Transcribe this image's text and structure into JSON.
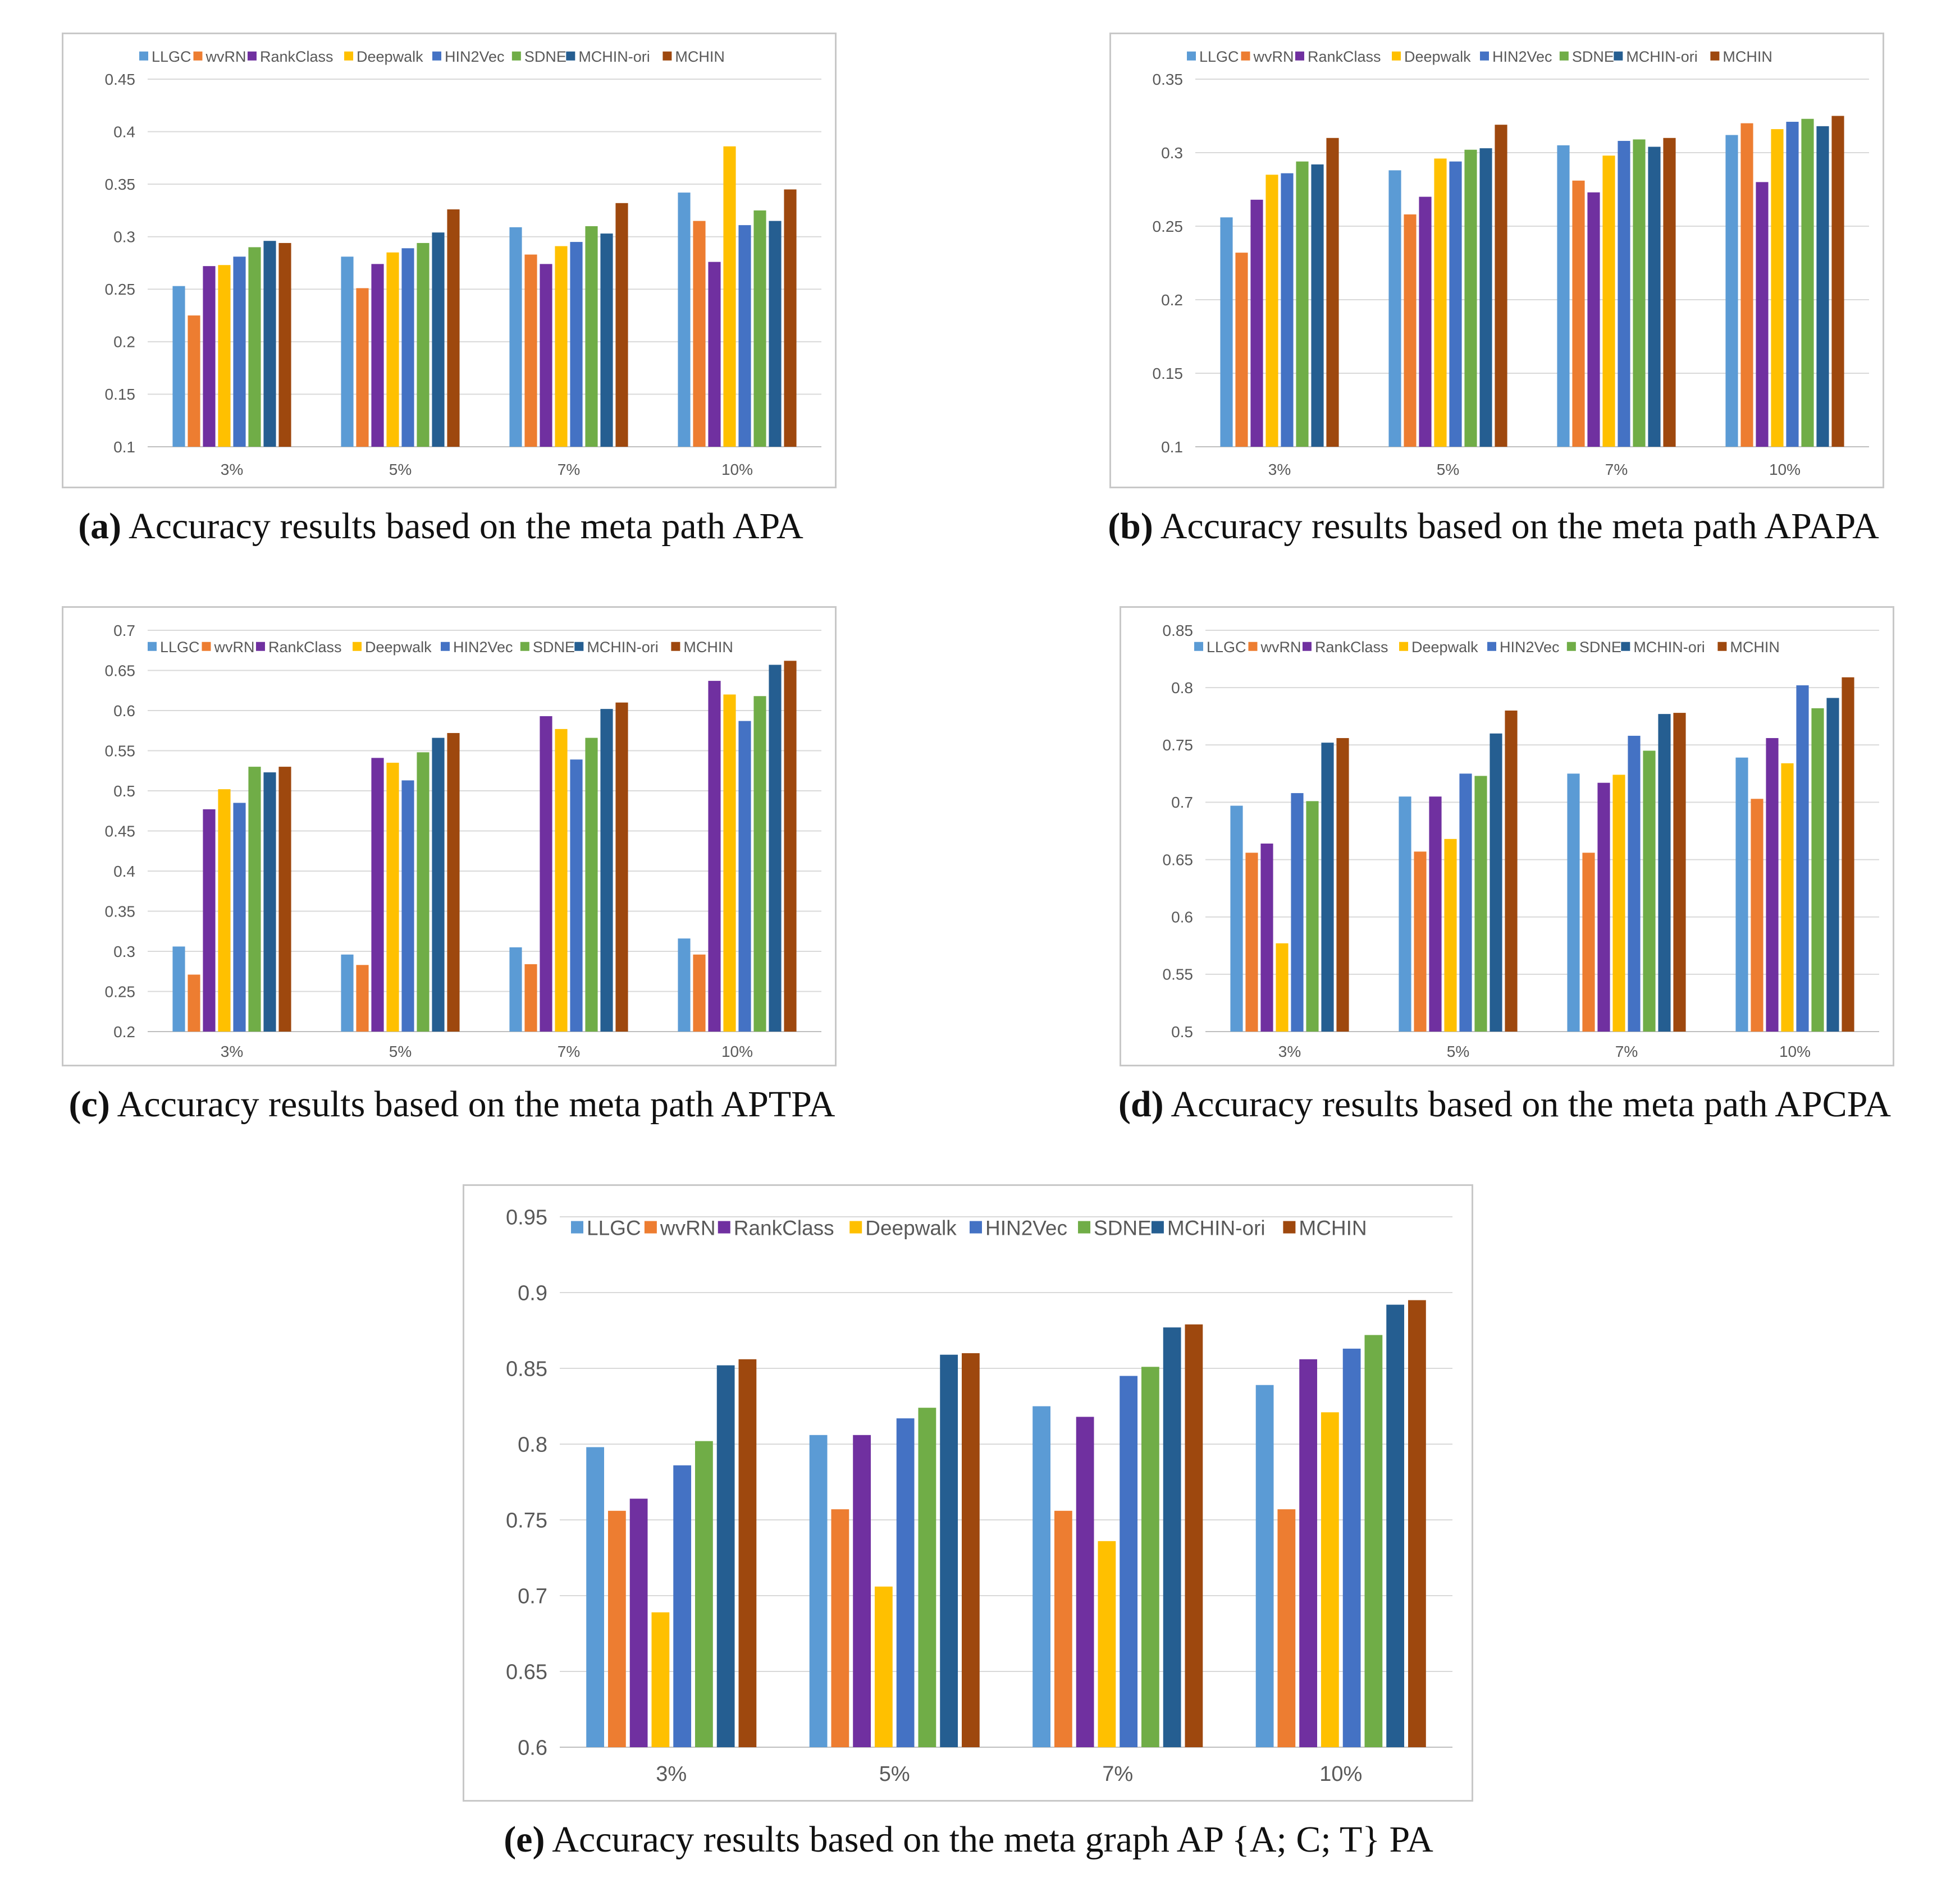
{
  "colors": [
    "#5B9BD5",
    "#ED7D31",
    "#7030A0",
    "#FFC000",
    "#4472C4",
    "#70AD47",
    "#255E91",
    "#9E480E"
  ],
  "chart_data": [
    {
      "id": "a",
      "type": "bar",
      "caption_label": "(a)",
      "caption_text": " Accuracy results based on the meta path APA",
      "categories": [
        "3%",
        "5%",
        "7%",
        "10%"
      ],
      "ylim": [
        0.1,
        0.45
      ],
      "yticks": [
        "0.1",
        "0.15",
        "0.2",
        "0.25",
        "0.3",
        "0.35",
        "0.4",
        "0.45"
      ],
      "series": [
        {
          "name": "LLGC",
          "values": [
            0.253,
            0.281,
            0.309,
            0.342
          ]
        },
        {
          "name": "wvRN",
          "values": [
            0.225,
            0.251,
            0.283,
            0.315
          ]
        },
        {
          "name": "RankClass",
          "values": [
            0.272,
            0.274,
            0.274,
            0.276
          ]
        },
        {
          "name": "Deepwalk",
          "values": [
            0.273,
            0.285,
            0.291,
            0.386
          ]
        },
        {
          "name": "HIN2Vec",
          "values": [
            0.281,
            0.289,
            0.295,
            0.311
          ]
        },
        {
          "name": "SDNE",
          "values": [
            0.29,
            0.294,
            0.31,
            0.325
          ]
        },
        {
          "name": "MCHIN-ori",
          "values": [
            0.296,
            0.304,
            0.303,
            0.315
          ]
        },
        {
          "name": "MCHIN",
          "values": [
            0.294,
            0.326,
            0.332,
            0.345
          ]
        }
      ]
    },
    {
      "id": "b",
      "type": "bar",
      "caption_label": "(b)",
      "caption_text": " Accuracy results based on the meta path APAPA",
      "categories": [
        "3%",
        "5%",
        "7%",
        "10%"
      ],
      "ylim": [
        0.1,
        0.35
      ],
      "yticks": [
        "0.1",
        "0.15",
        "0.2",
        "0.25",
        "0.3",
        "0.35"
      ],
      "series": [
        {
          "name": "LLGC",
          "values": [
            0.256,
            0.288,
            0.305,
            0.312
          ]
        },
        {
          "name": "wvRN",
          "values": [
            0.232,
            0.258,
            0.281,
            0.32
          ]
        },
        {
          "name": "RankClass",
          "values": [
            0.268,
            0.27,
            0.273,
            0.28
          ]
        },
        {
          "name": "Deepwalk",
          "values": [
            0.285,
            0.296,
            0.298,
            0.316
          ]
        },
        {
          "name": "HIN2Vec",
          "values": [
            0.286,
            0.294,
            0.308,
            0.321
          ]
        },
        {
          "name": "SDNE",
          "values": [
            0.294,
            0.302,
            0.309,
            0.323
          ]
        },
        {
          "name": "MCHIN-ori",
          "values": [
            0.292,
            0.303,
            0.304,
            0.318
          ]
        },
        {
          "name": "MCHIN",
          "values": [
            0.31,
            0.319,
            0.31,
            0.325
          ]
        }
      ]
    },
    {
      "id": "c",
      "type": "bar",
      "caption_label": "(c)",
      "caption_text": " Accuracy results based on the meta path APTPA",
      "categories": [
        "3%",
        "5%",
        "7%",
        "10%"
      ],
      "ylim": [
        0.2,
        0.7
      ],
      "yticks": [
        "0.2",
        "0.25",
        "0.3",
        "0.35",
        "0.4",
        "0.45",
        "0.5",
        "0.55",
        "0.6",
        "0.65",
        "0.7"
      ],
      "series": [
        {
          "name": "LLGC",
          "values": [
            0.306,
            0.296,
            0.305,
            0.316
          ]
        },
        {
          "name": "wvRN",
          "values": [
            0.271,
            0.283,
            0.284,
            0.296
          ]
        },
        {
          "name": "RankClass",
          "values": [
            0.477,
            0.541,
            0.593,
            0.637
          ]
        },
        {
          "name": "Deepwalk",
          "values": [
            0.502,
            0.535,
            0.577,
            0.62
          ]
        },
        {
          "name": "HIN2Vec",
          "values": [
            0.485,
            0.513,
            0.539,
            0.587
          ]
        },
        {
          "name": "SDNE",
          "values": [
            0.53,
            0.548,
            0.566,
            0.618
          ]
        },
        {
          "name": "MCHIN-ori",
          "values": [
            0.523,
            0.566,
            0.602,
            0.657
          ]
        },
        {
          "name": "MCHIN",
          "values": [
            0.53,
            0.572,
            0.61,
            0.662
          ]
        }
      ]
    },
    {
      "id": "d",
      "type": "bar",
      "caption_label": "(d)",
      "caption_text": " Accuracy results based on the meta path APCPA",
      "categories": [
        "3%",
        "5%",
        "7%",
        "10%"
      ],
      "ylim": [
        0.5,
        0.85
      ],
      "yticks": [
        "0.5",
        "0.55",
        "0.6",
        "0.65",
        "0.7",
        "0.75",
        "0.8",
        "0.85"
      ],
      "series": [
        {
          "name": "LLGC",
          "values": [
            0.697,
            0.705,
            0.725,
            0.739
          ]
        },
        {
          "name": "wvRN",
          "values": [
            0.656,
            0.657,
            0.656,
            0.703
          ]
        },
        {
          "name": "RankClass",
          "values": [
            0.664,
            0.705,
            0.717,
            0.756
          ]
        },
        {
          "name": "Deepwalk",
          "values": [
            0.577,
            0.668,
            0.724,
            0.734
          ]
        },
        {
          "name": "HIN2Vec",
          "values": [
            0.708,
            0.725,
            0.758,
            0.802
          ]
        },
        {
          "name": "SDNE",
          "values": [
            0.701,
            0.723,
            0.745,
            0.782
          ]
        },
        {
          "name": "MCHIN-ori",
          "values": [
            0.752,
            0.76,
            0.777,
            0.791
          ]
        },
        {
          "name": "MCHIN",
          "values": [
            0.756,
            0.78,
            0.778,
            0.809
          ]
        }
      ]
    },
    {
      "id": "e",
      "type": "bar",
      "caption_label": "(e)",
      "caption_text": " Accuracy results based on the meta graph AP {A; C; T} PA",
      "categories": [
        "3%",
        "5%",
        "7%",
        "10%"
      ],
      "ylim": [
        0.6,
        0.95
      ],
      "yticks": [
        "0.6",
        "0.65",
        "0.7",
        "0.75",
        "0.8",
        "0.85",
        "0.9",
        "0.95"
      ],
      "series": [
        {
          "name": "LLGC",
          "values": [
            0.798,
            0.806,
            0.825,
            0.839
          ]
        },
        {
          "name": "wvRN",
          "values": [
            0.756,
            0.757,
            0.756,
            0.757
          ]
        },
        {
          "name": "RankClass",
          "values": [
            0.764,
            0.806,
            0.818,
            0.856
          ]
        },
        {
          "name": "Deepwalk",
          "values": [
            0.689,
            0.706,
            0.736,
            0.821
          ]
        },
        {
          "name": "HIN2Vec",
          "values": [
            0.786,
            0.817,
            0.845,
            0.863
          ]
        },
        {
          "name": "SDNE",
          "values": [
            0.802,
            0.824,
            0.851,
            0.872
          ]
        },
        {
          "name": "MCHIN-ori",
          "values": [
            0.852,
            0.859,
            0.877,
            0.892
          ]
        },
        {
          "name": "MCHIN",
          "values": [
            0.856,
            0.86,
            0.879,
            0.895
          ]
        }
      ]
    }
  ]
}
